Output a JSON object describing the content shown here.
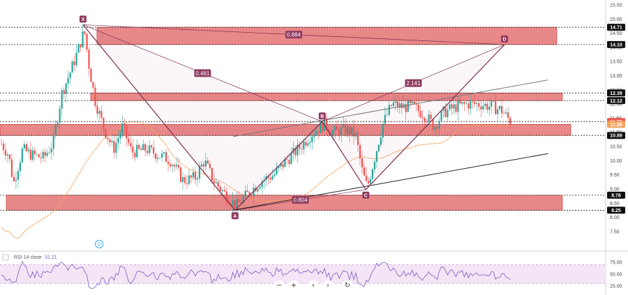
{
  "chart_data": {
    "type": "candlestick",
    "price_axis": {
      "range": [
        7.3,
        15.5
      ],
      "ticks": [
        "15.50",
        "15.00",
        "14.50",
        "14.00",
        "13.50",
        "13.00",
        "12.50",
        "12.00",
        "11.50",
        "11.00",
        "10.50",
        "10.00",
        "9.50",
        "9.00",
        "8.50",
        "8.00",
        "7.50"
      ]
    },
    "price_tags": [
      {
        "value": 14.71,
        "label": "14.71",
        "kind": "level"
      },
      {
        "value": 14.1,
        "label": "14.10",
        "kind": "level"
      },
      {
        "value": 12.39,
        "label": "12.39",
        "kind": "level"
      },
      {
        "value": 12.12,
        "label": "12.12",
        "kind": "level"
      },
      {
        "value": 11.38,
        "label": "11.38",
        "kind": "current",
        "color": "#ef5350"
      },
      {
        "value": 11.28,
        "label": "11.28",
        "kind": "ma",
        "color": "#f4a460"
      },
      {
        "value": 10.89,
        "label": "10.89",
        "kind": "level"
      },
      {
        "value": 8.78,
        "label": "8.78",
        "kind": "level"
      },
      {
        "value": 8.25,
        "label": "8.25",
        "kind": "level"
      }
    ],
    "levels": [
      14.71,
      14.1,
      12.39,
      12.12,
      11.38,
      10.89,
      8.78,
      8.25
    ],
    "zones": [
      {
        "from": 14.1,
        "to": 14.71,
        "end": "mid"
      },
      {
        "from": 12.12,
        "to": 12.39,
        "end": "far"
      },
      {
        "from": 10.89,
        "to": 11.28,
        "end": "far"
      },
      {
        "from": 8.25,
        "to": 8.78,
        "end": "mid"
      }
    ],
    "harmonic_pattern": {
      "points": [
        {
          "label": "X",
          "price": 14.8,
          "bar": 0.137
        },
        {
          "label": "A",
          "price": 8.25,
          "bar": 0.388
        },
        {
          "label": "B",
          "price": 11.38,
          "bar": 0.532
        },
        {
          "label": "C",
          "price": 8.98,
          "bar": 0.604
        },
        {
          "label": "D",
          "price": 14.1,
          "bar": 0.833
        }
      ],
      "ratios": [
        {
          "label": "0.461",
          "between": "XB"
        },
        {
          "label": "0.804",
          "between": "AC"
        },
        {
          "label": "2.141",
          "between": "BD"
        },
        {
          "label": "0.884",
          "between": "XD"
        }
      ]
    },
    "trendlines": [
      {
        "from": [
          0.385,
          8.25
        ],
        "to": [
          0.905,
          10.25
        ],
        "color": "#222222"
      },
      {
        "from": [
          0.385,
          10.85
        ],
        "to": [
          0.905,
          12.85
        ],
        "color": "#777777"
      }
    ],
    "event_marker": "D",
    "rsi": {
      "title": "RSI 14 close",
      "value": "31.21",
      "range": [
        0,
        100
      ],
      "band": [
        30,
        70
      ],
      "ticks": [
        "75.00",
        "50.00",
        "25.00"
      ]
    },
    "colors": {
      "up": "#26a69a",
      "down": "#ef5350",
      "zone_fill": "#e57373",
      "pattern_line": "#7b2d4f",
      "pattern_fill": "#8e3a5f",
      "ma": "#f4a460",
      "rsi_line": "#7e57c2",
      "rsi_band": "#f3e5f5"
    }
  },
  "toolbar": {
    "zoom_out": "−",
    "zoom_in": "+",
    "scroll_left": "‹",
    "scroll_right": "›",
    "reset": "↻"
  }
}
